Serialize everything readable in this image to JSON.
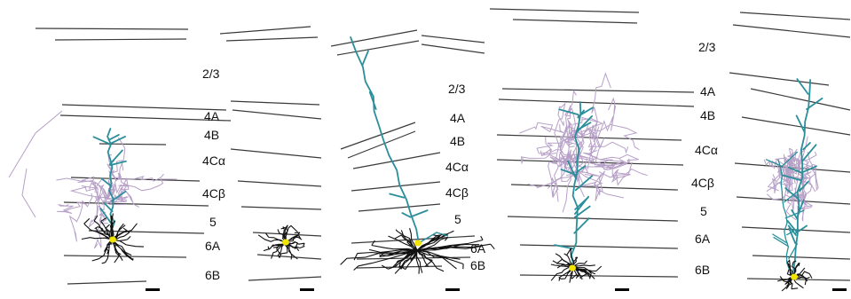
{
  "colors": {
    "background": "#ffffff",
    "layer_boundary": "#3a3a3a",
    "dendrite": "#111111",
    "apical_dendrite": "#2a8f9a",
    "axon": "#b7a0c8",
    "soma": "#f2e600",
    "scale_bar": "#000000"
  },
  "label_groups": [
    {
      "name": "labels-group-1",
      "labels": [
        "2/3",
        "4A",
        "4B",
        "4Cα",
        "4Cβ",
        "5",
        "6A",
        "6B"
      ]
    },
    {
      "name": "labels-group-2",
      "labels": [
        "2/3",
        "4A",
        "4B",
        "4Cα",
        "4Cβ",
        "5",
        "6A",
        "6B"
      ]
    },
    {
      "name": "labels-group-3",
      "labels": [
        "2/3",
        "4A",
        "4B",
        "4Cα",
        "4Cβ",
        "5",
        "6A",
        "6B"
      ]
    }
  ],
  "neurons": [
    {
      "name": "neuron-1",
      "has_axon": true,
      "has_apical": true
    },
    {
      "name": "neuron-2",
      "has_axon": false,
      "has_apical": false
    },
    {
      "name": "neuron-3",
      "has_axon": false,
      "has_apical": true
    },
    {
      "name": "neuron-4",
      "has_axon": true,
      "has_apical": true
    },
    {
      "name": "neuron-5",
      "has_axon": true,
      "has_apical": true
    }
  ]
}
